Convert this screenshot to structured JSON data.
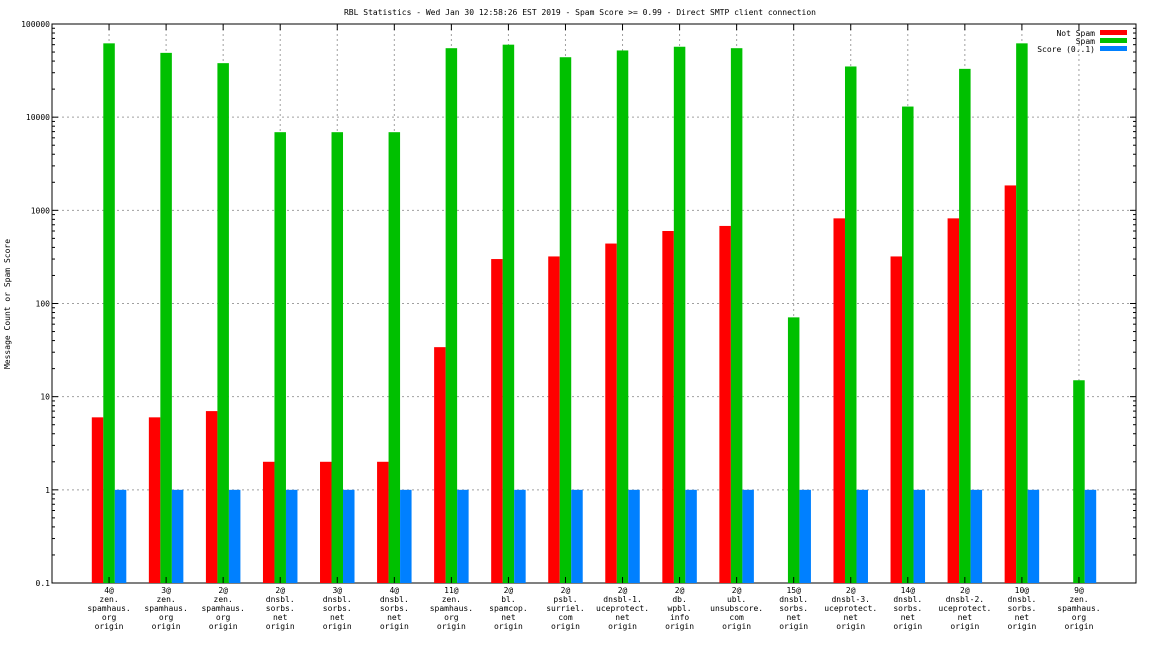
{
  "chart_data": {
    "type": "bar",
    "title": "RBL Statistics - Wed Jan 30 12:58:26 EST 2019 - Spam Score >= 0.99 - Direct SMTP client connection",
    "ylabel": "Message Count or Spam Score",
    "xlabel": "",
    "yscale": "log",
    "ylim": [
      0.1,
      100000
    ],
    "yticks": [
      "0.1",
      "1",
      "10",
      "100",
      "1000",
      "10000",
      "100000"
    ],
    "grid": true,
    "legend_position": "top-right",
    "categories": [
      [
        "4@",
        "zen.",
        "spamhaus.",
        "org",
        "origin"
      ],
      [
        "3@",
        "zen.",
        "spamhaus.",
        "org",
        "origin"
      ],
      [
        "2@",
        "zen.",
        "spamhaus.",
        "org",
        "origin"
      ],
      [
        "2@",
        "dnsbl.",
        "sorbs.",
        "net",
        "origin"
      ],
      [
        "3@",
        "dnsbl.",
        "sorbs.",
        "net",
        "origin"
      ],
      [
        "4@",
        "dnsbl.",
        "sorbs.",
        "net",
        "origin"
      ],
      [
        "11@",
        "zen.",
        "spamhaus.",
        "org",
        "origin"
      ],
      [
        "2@",
        "bl.",
        "spamcop.",
        "net",
        "origin"
      ],
      [
        "2@",
        "psbl.",
        "surriel.",
        "com",
        "origin"
      ],
      [
        "2@",
        "dnsbl-1.",
        "uceprotect.",
        "net",
        "origin"
      ],
      [
        "2@",
        "db.",
        "wpbl.",
        "info",
        "origin"
      ],
      [
        "2@",
        "ubl.",
        "unsubscore.",
        "com",
        "origin"
      ],
      [
        "15@",
        "dnsbl.",
        "sorbs.",
        "net",
        "origin"
      ],
      [
        "2@",
        "dnsbl-3.",
        "uceprotect.",
        "net",
        "origin"
      ],
      [
        "14@",
        "dnsbl.",
        "sorbs.",
        "net",
        "origin"
      ],
      [
        "2@",
        "dnsbl-2.",
        "uceprotect.",
        "net",
        "origin"
      ],
      [
        "10@",
        "dnsbl.",
        "sorbs.",
        "net",
        "origin"
      ],
      [
        "9@",
        "zen.",
        "spamhaus.",
        "org",
        "origin"
      ]
    ],
    "series": [
      {
        "name": "Not Spam",
        "color": "#ff0000",
        "values": [
          6,
          6,
          7,
          2,
          2,
          2,
          34,
          300,
          320,
          440,
          600,
          680,
          null,
          820,
          320,
          820,
          1850,
          null
        ]
      },
      {
        "name": "Spam",
        "color": "#00c000",
        "values": [
          62000,
          49000,
          38000,
          6900,
          6900,
          6900,
          55000,
          60000,
          44000,
          52000,
          57000,
          55000,
          71,
          35000,
          13000,
          33000,
          62000,
          15
        ]
      },
      {
        "name": "Score (0..1)",
        "color": "#0080ff",
        "values": [
          1,
          1,
          1,
          1,
          1,
          1,
          1,
          1,
          1,
          1,
          1,
          1,
          1,
          1,
          1,
          1,
          1,
          1
        ]
      }
    ]
  }
}
